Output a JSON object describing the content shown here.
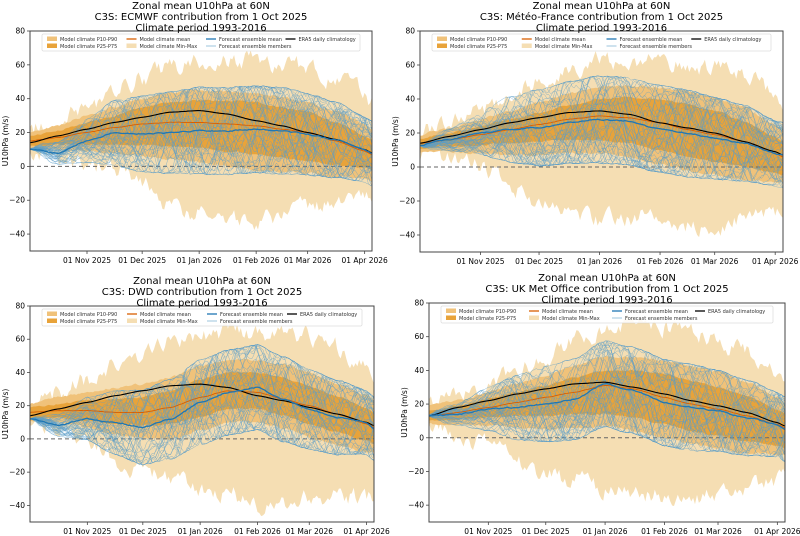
{
  "colors": {
    "minmax": "#f5deb3",
    "p10p90": "#f0c27a",
    "p25p75": "#e8a33a",
    "model_mean": "#d95f02",
    "ens_mean": "#1f77b4",
    "ens_members": "#5a9dc8",
    "era5": "#000000",
    "zero_line": "#666666"
  },
  "legend": {
    "items": [
      {
        "key": "p10p90",
        "label": "Model climate P10-P90",
        "kind": "patch"
      },
      {
        "key": "p25p75",
        "label": "Model climate P25-P75",
        "kind": "patch"
      },
      {
        "key": "model_mean",
        "label": "Model climate mean",
        "kind": "line"
      },
      {
        "key": "minmax",
        "label": "Model climate Min-Max",
        "kind": "patch"
      },
      {
        "key": "ens_mean",
        "label": "Forecast ensemble mean",
        "kind": "line"
      },
      {
        "key": "ens_members",
        "label": "Forecast ensemble members",
        "kind": "thinline"
      },
      {
        "key": "era5",
        "label": "ERA5 daily climatology",
        "kind": "line"
      }
    ]
  },
  "chart_data": [
    {
      "type": "area",
      "title": "Zonal mean U10hPa at 60N",
      "subtitle": "C3S: ECMWF contribution from 1 Oct 2025",
      "subtitle2": "Climate period 1993-2016",
      "xlabel": "",
      "ylabel": "U10hPa (m/s)",
      "ylim": [
        -50,
        80
      ],
      "yticks": [
        -40,
        -20,
        0,
        20,
        40,
        60,
        80
      ],
      "x_start": "2025-10-01",
      "x_end_day": 186,
      "xticks": [
        {
          "day": 31,
          "label": "01 Nov 2025"
        },
        {
          "day": 61,
          "label": "01 Dec 2025"
        },
        {
          "day": 92,
          "label": "01 Jan 2026"
        },
        {
          "day": 123,
          "label": "01 Feb 2026"
        },
        {
          "day": 151,
          "label": "01 Mar 2026"
        },
        {
          "day": 182,
          "label": "01 Apr 2026"
        }
      ],
      "legend_position": "top",
      "control_days": [
        0,
        15,
        31,
        46,
        61,
        76,
        92,
        107,
        123,
        137,
        151,
        166,
        182,
        186
      ],
      "era5": [
        14,
        18,
        22,
        26,
        29,
        32,
        33,
        31,
        27,
        24,
        20,
        16,
        10,
        8
      ],
      "model_mean": [
        15,
        17,
        20,
        23,
        25,
        26,
        26,
        25,
        24,
        22,
        20,
        15,
        9,
        7
      ],
      "p25": [
        12,
        13,
        13,
        13,
        13,
        12,
        11,
        9,
        7,
        5,
        3,
        1,
        -1,
        -2
      ],
      "p75": [
        18,
        21,
        26,
        30,
        35,
        38,
        39,
        39,
        38,
        35,
        32,
        26,
        18,
        16
      ],
      "p10": [
        10,
        10,
        9,
        8,
        6,
        4,
        2,
        0,
        -2,
        -3,
        -4,
        -6,
        -7,
        -8
      ],
      "p90": [
        20,
        24,
        30,
        35,
        40,
        44,
        45,
        44,
        43,
        41,
        38,
        33,
        25,
        22
      ],
      "min": [
        8,
        7,
        3,
        -2,
        -10,
        -22,
        -28,
        -30,
        -32,
        -30,
        -25,
        -22,
        -18,
        -18
      ],
      "max": [
        22,
        27,
        35,
        43,
        52,
        58,
        62,
        64,
        62,
        60,
        58,
        52,
        42,
        38
      ],
      "ens_mean": [
        10,
        8,
        15,
        20,
        19,
        20,
        21,
        21,
        22,
        21,
        19,
        16,
        10,
        8
      ],
      "members_count": 50,
      "members_spread": [
        2,
        4,
        8,
        12,
        14,
        15,
        16,
        16,
        16,
        16,
        15,
        14,
        12,
        12
      ]
    },
    {
      "type": "area",
      "title": "Zonal mean U10hPa at 60N",
      "subtitle": "C3S: Météo-France contribution from 1 Oct 2025",
      "subtitle2": "Climate period 1993-2016",
      "xlabel": "",
      "ylabel": "U10hPa (m/s)",
      "ylim": [
        -50,
        80
      ],
      "yticks": [
        -40,
        -20,
        0,
        20,
        40,
        60,
        80
      ],
      "x_start": "2025-10-01",
      "x_end_day": 186,
      "xticks": [
        {
          "day": 31,
          "label": "01 Nov 2025"
        },
        {
          "day": 61,
          "label": "01 Dec 2025"
        },
        {
          "day": 92,
          "label": "01 Jan 2026"
        },
        {
          "day": 123,
          "label": "01 Feb 2026"
        },
        {
          "day": 151,
          "label": "01 Mar 2026"
        },
        {
          "day": 182,
          "label": "01 Apr 2026"
        }
      ],
      "legend_position": "top",
      "control_days": [
        0,
        15,
        31,
        46,
        61,
        76,
        92,
        107,
        123,
        137,
        151,
        166,
        182,
        186
      ],
      "era5": [
        14,
        18,
        22,
        26,
        29,
        32,
        33,
        31,
        26,
        23,
        20,
        15,
        9,
        7
      ],
      "model_mean": [
        14,
        16,
        19,
        22,
        25,
        28,
        30,
        29,
        26,
        22,
        19,
        15,
        8,
        6
      ],
      "p25": [
        11,
        12,
        13,
        14,
        15,
        16,
        16,
        14,
        10,
        6,
        3,
        0,
        -4,
        -5
      ],
      "p75": [
        17,
        20,
        24,
        28,
        32,
        36,
        40,
        41,
        40,
        37,
        33,
        27,
        18,
        15
      ],
      "p10": [
        9,
        9,
        8,
        7,
        7,
        8,
        8,
        6,
        2,
        -2,
        -5,
        -8,
        -9,
        -9
      ],
      "p90": [
        19,
        23,
        28,
        33,
        38,
        43,
        47,
        48,
        47,
        45,
        41,
        35,
        25,
        22
      ],
      "min": [
        8,
        6,
        0,
        -10,
        -22,
        -30,
        -32,
        -30,
        -28,
        -35,
        -38,
        -30,
        -28,
        -27
      ],
      "max": [
        20,
        26,
        34,
        42,
        50,
        57,
        62,
        63,
        62,
        60,
        58,
        54,
        42,
        38
      ],
      "ens_mean": [
        13,
        16,
        20,
        22,
        23,
        26,
        28,
        27,
        22,
        20,
        17,
        14,
        8,
        7
      ],
      "members_count": 50,
      "members_spread": [
        2,
        4,
        8,
        12,
        14,
        15,
        16,
        16,
        16,
        16,
        15,
        14,
        12,
        12
      ]
    },
    {
      "type": "area",
      "title": "Zonal mean U10hPa at 60N",
      "subtitle": "C3S: DWD contribution from 1 Oct 2025",
      "subtitle2": "Climate period 1993-2016",
      "xlabel": "",
      "ylabel": "U10hPa (m/s)",
      "ylim": [
        -50,
        80
      ],
      "yticks": [
        -40,
        -20,
        0,
        20,
        40,
        60,
        80
      ],
      "x_start": "2025-10-01",
      "x_end_day": 186,
      "xticks": [
        {
          "day": 31,
          "label": "01 Nov 2025"
        },
        {
          "day": 61,
          "label": "01 Dec 2025"
        },
        {
          "day": 92,
          "label": "01 Jan 2026"
        },
        {
          "day": 123,
          "label": "01 Feb 2026"
        },
        {
          "day": 151,
          "label": "01 Mar 2026"
        },
        {
          "day": 182,
          "label": "01 Apr 2026"
        }
      ],
      "legend_position": "top",
      "control_days": [
        0,
        15,
        31,
        46,
        61,
        76,
        92,
        107,
        123,
        137,
        151,
        166,
        182,
        186
      ],
      "era5": [
        14,
        18,
        22,
        26,
        29,
        32,
        33,
        31,
        26,
        23,
        19,
        15,
        10,
        8
      ],
      "model_mean": [
        16,
        17,
        17,
        16,
        16,
        19,
        25,
        29,
        28,
        24,
        20,
        15,
        9,
        7
      ],
      "p25": [
        13,
        13,
        11,
        9,
        8,
        9,
        13,
        18,
        18,
        14,
        9,
        4,
        -1,
        -3
      ],
      "p75": [
        19,
        21,
        23,
        24,
        25,
        29,
        36,
        40,
        40,
        37,
        32,
        26,
        19,
        16
      ],
      "p10": [
        11,
        10,
        7,
        3,
        0,
        0,
        5,
        10,
        10,
        6,
        1,
        -4,
        -8,
        -8
      ],
      "p90": [
        21,
        25,
        28,
        31,
        33,
        37,
        44,
        48,
        47,
        45,
        40,
        33,
        26,
        23
      ],
      "min": [
        9,
        6,
        -2,
        -12,
        -20,
        -25,
        -30,
        -32,
        -40,
        -38,
        -35,
        -35,
        -35,
        -35
      ],
      "max": [
        22,
        28,
        36,
        44,
        52,
        58,
        62,
        64,
        63,
        62,
        62,
        55,
        44,
        38
      ],
      "ens_mean": [
        12,
        8,
        12,
        10,
        7,
        12,
        22,
        28,
        31,
        24,
        18,
        13,
        10,
        6
      ],
      "members_count": 50,
      "members_spread": [
        2,
        4,
        8,
        12,
        14,
        15,
        16,
        16,
        16,
        16,
        15,
        14,
        12,
        12
      ]
    },
    {
      "type": "area",
      "title": "Zonal mean U10hPa at 60N",
      "subtitle": "C3S: UK Met Office contribution from 1 Oct 2025",
      "subtitle2": "Climate period 1993-2016",
      "xlabel": "",
      "ylabel": "U10hPa (m/s)",
      "ylim": [
        -50,
        80
      ],
      "yticks": [
        -40,
        -20,
        0,
        20,
        40,
        60,
        80
      ],
      "x_start": "2025-10-01",
      "x_end_day": 186,
      "xticks": [
        {
          "day": 31,
          "label": "01 Nov 2025"
        },
        {
          "day": 61,
          "label": "01 Dec 2025"
        },
        {
          "day": 92,
          "label": "01 Jan 2026"
        },
        {
          "day": 123,
          "label": "01 Feb 2026"
        },
        {
          "day": 151,
          "label": "01 Mar 2026"
        },
        {
          "day": 182,
          "label": "01 Apr 2026"
        }
      ],
      "legend_position": "top",
      "control_days": [
        0,
        15,
        31,
        46,
        61,
        76,
        92,
        107,
        123,
        137,
        151,
        166,
        182,
        186
      ],
      "era5": [
        13,
        18,
        22,
        26,
        29,
        32,
        33,
        30,
        26,
        22,
        19,
        15,
        9,
        7
      ],
      "model_mean": [
        13,
        15,
        18,
        21,
        24,
        27,
        31,
        29,
        24,
        20,
        17,
        13,
        8,
        6
      ],
      "p25": [
        10,
        11,
        12,
        13,
        13,
        14,
        14,
        12,
        8,
        4,
        1,
        -2,
        -5,
        -6
      ],
      "p75": [
        16,
        19,
        23,
        27,
        31,
        36,
        40,
        40,
        38,
        34,
        30,
        25,
        17,
        15
      ],
      "p10": [
        8,
        8,
        7,
        6,
        5,
        6,
        7,
        4,
        0,
        -4,
        -6,
        -9,
        -10,
        -10
      ],
      "p90": [
        19,
        22,
        27,
        32,
        37,
        43,
        48,
        48,
        46,
        43,
        39,
        33,
        24,
        20
      ],
      "min": [
        6,
        3,
        -5,
        -15,
        -22,
        -25,
        -30,
        -32,
        -35,
        -35,
        -34,
        -30,
        -26,
        -25
      ],
      "max": [
        20,
        26,
        32,
        40,
        48,
        58,
        65,
        68,
        66,
        62,
        58,
        50,
        40,
        38
      ],
      "ens_mean": [
        13,
        14,
        17,
        18,
        20,
        23,
        32,
        28,
        21,
        18,
        16,
        12,
        8,
        5
      ],
      "members_count": 50,
      "members_spread": [
        2,
        4,
        8,
        12,
        14,
        15,
        16,
        16,
        16,
        16,
        15,
        14,
        12,
        12
      ]
    }
  ]
}
